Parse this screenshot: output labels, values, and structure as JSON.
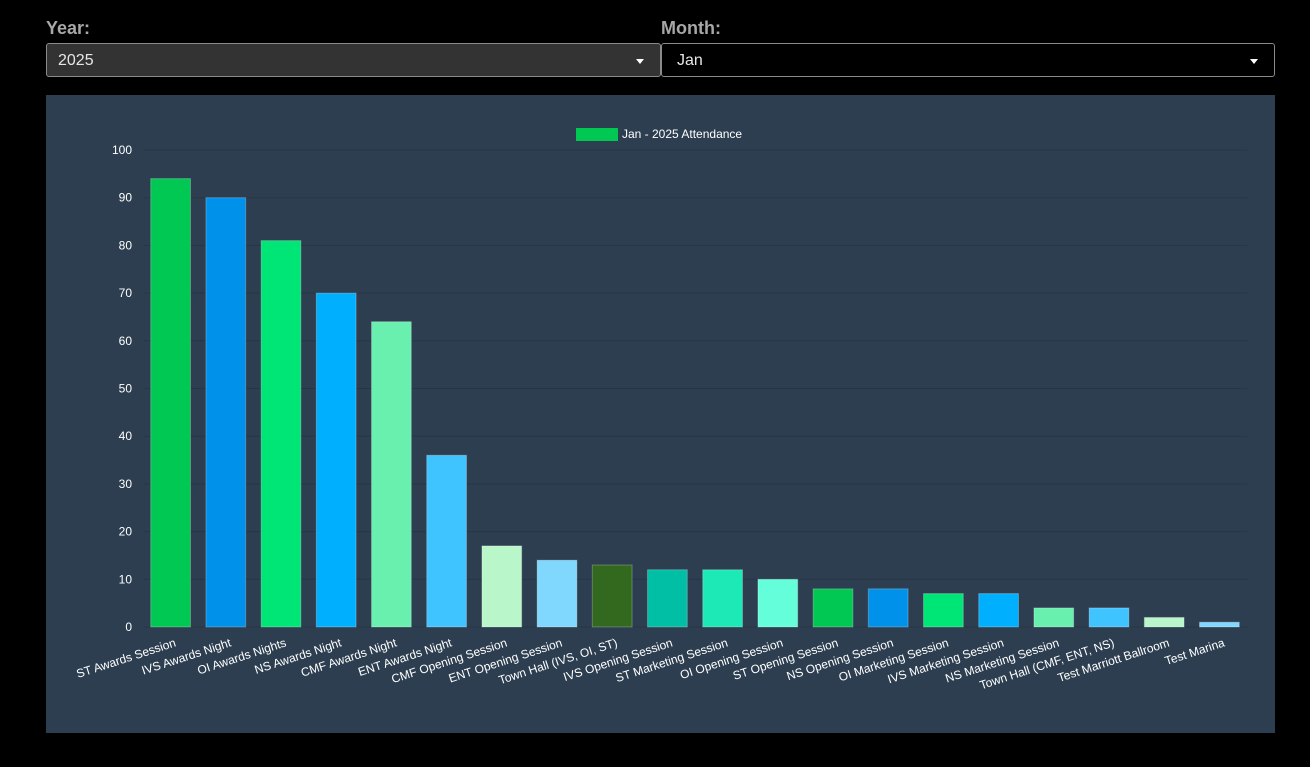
{
  "filters": {
    "year": {
      "label": "Year:",
      "value": "2025"
    },
    "month": {
      "label": "Month:",
      "value": "Jan"
    }
  },
  "chart_data": {
    "type": "bar",
    "legend": {
      "label": "Jan - 2025 Attendance",
      "color": "#00c853",
      "placement": "top-center"
    },
    "categories": [
      "ST Awards Session",
      "IVS Awards Night",
      "OI Awards Nights",
      "NS Awards Night",
      "CMF Awards Night",
      "ENT Awards Night",
      "CMF Opening Session",
      "ENT Opening Session",
      "Town Hall (IVS, OI, ST)",
      "IVS Opening Session",
      "ST Marketing Session",
      "OI Opening Session",
      "ST Opening Session",
      "NS Opening Session",
      "OI Marketing Session",
      "IVS Marketing Session",
      "NS Marketing Session",
      "Town Hall (CMF, ENT, NS)",
      "Test Marriott Ballroom",
      "Test Marina"
    ],
    "values": [
      94,
      90,
      81,
      70,
      64,
      36,
      17,
      14,
      13,
      12,
      12,
      10,
      8,
      8,
      7,
      7,
      4,
      4,
      2,
      1
    ],
    "colors": [
      "#00c853",
      "#0091ea",
      "#00e676",
      "#00b0ff",
      "#69f0ae",
      "#40c4ff",
      "#b9f6ca",
      "#80d8ff",
      "#33691e",
      "#00bfa5",
      "#1de9b6",
      "#64ffda",
      "#00c853",
      "#0091ea",
      "#00e676",
      "#00b0ff",
      "#69f0ae",
      "#40c4ff",
      "#b9f6ca",
      "#80d8ff"
    ],
    "ylim": [
      0,
      100
    ],
    "yticks": [
      0,
      10,
      20,
      30,
      40,
      50,
      60,
      70,
      80,
      90,
      100
    ],
    "grid": true
  }
}
